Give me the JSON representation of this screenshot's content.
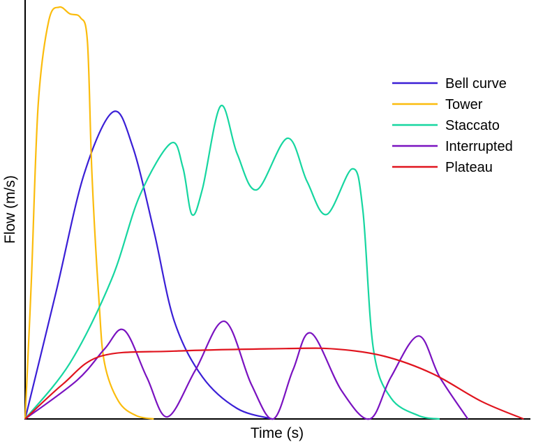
{
  "chart_data": {
    "type": "line",
    "title": "",
    "xlabel": "Time (s)",
    "ylabel": "Flow (m/s)",
    "xlim": [
      0,
      100
    ],
    "ylim": [
      0,
      100
    ],
    "grid": false,
    "legend_position": "top-right",
    "series": [
      {
        "name": "Bell curve",
        "color": "#3a1fd6",
        "x": [
          0,
          6.1,
          11.7,
          17.5,
          21.4,
          25.6,
          29.7,
          35.3,
          42.2,
          49.2
        ],
        "y": [
          0,
          30,
          58.3,
          73.3,
          65,
          45,
          23.3,
          10,
          2.5,
          0
        ]
      },
      {
        "name": "Tower",
        "color": "#fbbc0d",
        "x": [
          0,
          1.25,
          2.6,
          4.7,
          6.8,
          8.9,
          11,
          12.4,
          13.3,
          14.7,
          15.8,
          18.6,
          22.1,
          25.6
        ],
        "y": [
          0,
          33.3,
          75,
          95,
          98.3,
          96.7,
          95.8,
          90,
          58.3,
          28.3,
          13.3,
          4.2,
          0.8,
          0
        ]
      },
      {
        "name": "Staccato",
        "color": "#16d6a0",
        "x": [
          0,
          8.9,
          17.2,
          22.8,
          29,
          31.4,
          33.2,
          35.3,
          38.9,
          42.2,
          46.1,
          52.2,
          56.1,
          60,
          65.1,
          67.2,
          69.3,
          72.8,
          78.3,
          82.5
        ],
        "y": [
          0,
          13.3,
          33.3,
          53.3,
          65.8,
          60,
          48.8,
          55,
          74.7,
          63.3,
          54.7,
          67,
          56.7,
          48.8,
          59.7,
          50,
          16.7,
          5,
          0.8,
          0
        ]
      },
      {
        "name": "Interrupted",
        "color": "#7a12c0",
        "x": [
          0,
          10.3,
          15.8,
          19.7,
          24.2,
          28.3,
          33.9,
          39.7,
          45,
          49.4,
          53.3,
          56.9,
          63,
          68.6,
          72.8,
          78.3,
          82.5,
          88.1
        ],
        "y": [
          0,
          9.2,
          16.7,
          21.2,
          10,
          0.5,
          11.7,
          23.3,
          8.3,
          0,
          11.7,
          20.5,
          6.7,
          0,
          10,
          19.8,
          10,
          0
        ]
      },
      {
        "name": "Plateau",
        "color": "#e0141e",
        "x": [
          0,
          7.5,
          15.1,
          29.7,
          51.9,
          61.7,
          71.4,
          81.1,
          90.8,
          99.2
        ],
        "y": [
          0,
          8.3,
          15,
          16.2,
          16.8,
          16.7,
          15,
          10.8,
          4.2,
          0
        ]
      }
    ]
  }
}
